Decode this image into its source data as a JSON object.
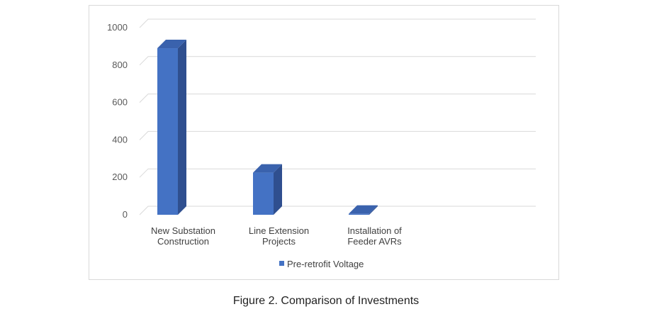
{
  "chart_data": {
    "type": "bar",
    "style": "3d-column",
    "categories": [
      [
        "New Substation",
        "Construction"
      ],
      [
        "Line Extension",
        "Projects"
      ],
      [
        "Installation of",
        "Feeder AVRs"
      ]
    ],
    "series": [
      {
        "name": "Pre-retrofit Voltage",
        "values": [
          890,
          225,
          5
        ]
      }
    ],
    "ylim": [
      0,
      1000
    ],
    "yticks": [
      0,
      200,
      400,
      600,
      800,
      1000
    ],
    "grid": true,
    "legend": "bottom",
    "colors": {
      "front": "#4472c4",
      "side": "#2f4f8f",
      "top": "#3a62ad",
      "grid": "#d9d9d9"
    }
  },
  "caption": "Figure 2. Comparison of Investments"
}
